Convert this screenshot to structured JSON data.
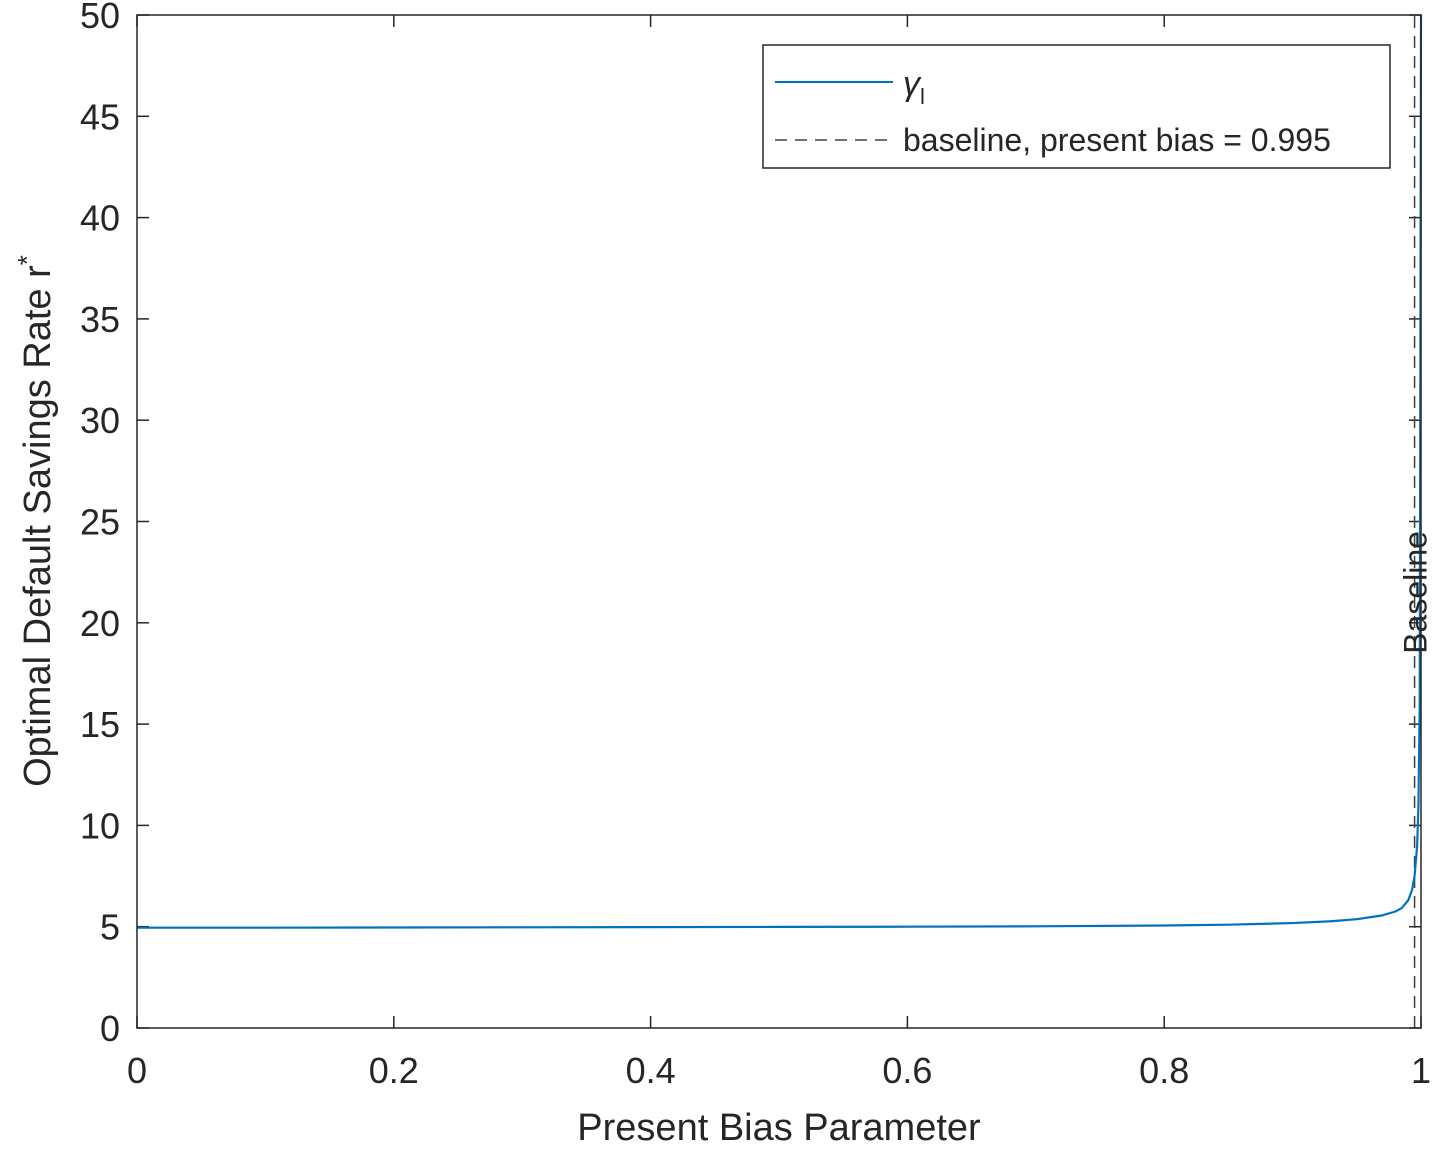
{
  "chart_data": {
    "type": "line",
    "xlabel": "Present Bias Parameter",
    "ylabel": "Optimal Default Savings Rate r",
    "ylabel_superscript": "*",
    "xlim": [
      0,
      1
    ],
    "ylim": [
      0,
      50
    ],
    "xticks": [
      0,
      0.2,
      0.4,
      0.6,
      0.8,
      1
    ],
    "xtick_labels": [
      "0",
      "0.2",
      "0.4",
      "0.6",
      "0.8",
      "1"
    ],
    "yticks": [
      0,
      5,
      10,
      15,
      20,
      25,
      30,
      35,
      40,
      45,
      50
    ],
    "ytick_labels": [
      "0",
      "5",
      "10",
      "15",
      "20",
      "25",
      "30",
      "35",
      "40",
      "45",
      "50"
    ],
    "grid": false,
    "legend_position": "top-right",
    "series": [
      {
        "name": "γ",
        "name_subscript": "l",
        "color": "#0072BD",
        "style": "solid",
        "x": [
          0,
          0.1,
          0.2,
          0.3,
          0.4,
          0.5,
          0.6,
          0.7,
          0.8,
          0.85,
          0.9,
          0.93,
          0.95,
          0.97,
          0.98,
          0.985,
          0.99,
          0.993,
          0.995,
          0.997,
          0.998,
          0.999,
          1.0
        ],
        "y": [
          4.95,
          4.95,
          4.96,
          4.97,
          4.98,
          4.99,
          5.0,
          5.02,
          5.06,
          5.1,
          5.18,
          5.27,
          5.37,
          5.56,
          5.75,
          5.92,
          6.3,
          6.8,
          7.5,
          9.0,
          11.0,
          16.0,
          50.0
        ]
      },
      {
        "name": "baseline, present bias = 0.995",
        "color": "#404040",
        "style": "dashed",
        "x": [
          0.995,
          0.995
        ],
        "y": [
          0,
          50
        ]
      }
    ],
    "annotations": [
      {
        "text": "Baseline",
        "x": 0.995,
        "y": 21.5,
        "rotation": -90
      }
    ]
  }
}
